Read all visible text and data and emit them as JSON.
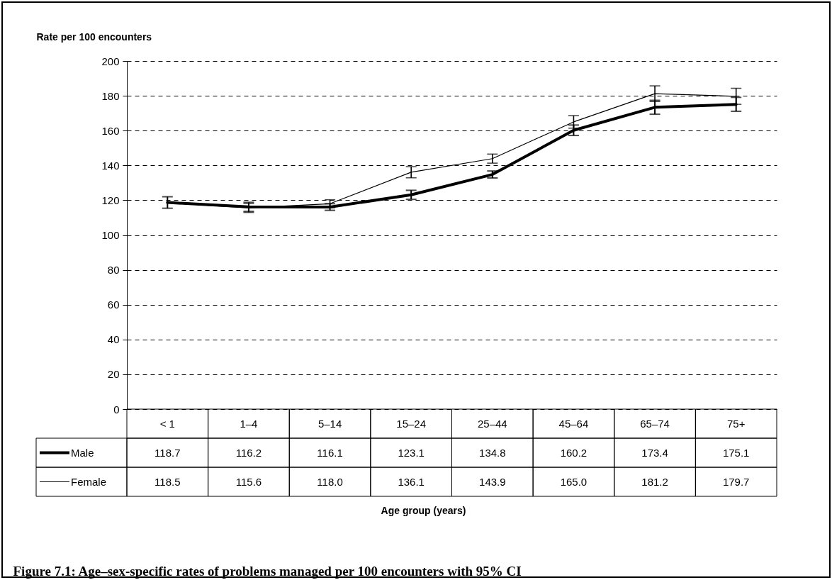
{
  "chart_data": {
    "type": "line",
    "title": "Figure 7.1: Age–sex-specific rates of problems managed per 100 encounters with 95% CI",
    "ylabel": "Rate per 100 encounters",
    "annotations": [
      "Age group (years)"
    ],
    "categories": [
      "< 1",
      "1–4",
      "5–14",
      "15–24",
      "25–44",
      "45–64",
      "65–74",
      "75+"
    ],
    "series": [
      {
        "name": "Male",
        "color": "#000000",
        "values": [
          118.7,
          116.2,
          116.1,
          123.1,
          134.8,
          160.2,
          173.4,
          175.1
        ],
        "value_labels": [
          "118.7",
          "116.2",
          "116.1",
          "123.1",
          "134.8",
          "160.2",
          "173.4",
          "175.1"
        ],
        "errors": [
          3.3,
          2.6,
          1.9,
          2.6,
          2.0,
          3.0,
          4.0,
          4.0
        ]
      },
      {
        "name": "Female",
        "color": "#000000",
        "values": [
          118.5,
          115.6,
          118.0,
          136.1,
          143.9,
          165.0,
          181.2,
          179.7
        ],
        "value_labels": [
          "118.5",
          "115.6",
          "118.0",
          "136.1",
          "143.9",
          "165.0",
          "181.2",
          "179.7"
        ],
        "errors": [
          null,
          2.6,
          2.3,
          3.2,
          2.6,
          3.6,
          4.5,
          4.6
        ]
      }
    ],
    "ylim": [
      0,
      200
    ],
    "yticks": [
      0,
      20,
      40,
      60,
      80,
      100,
      120,
      140,
      160,
      180,
      200
    ],
    "grid": "y",
    "legend": "bottom left",
    "line_style": "solid"
  }
}
